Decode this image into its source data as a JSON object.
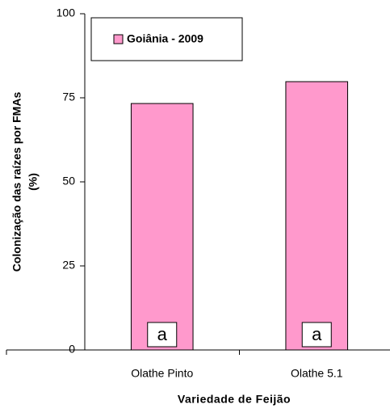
{
  "chart_data": {
    "type": "bar",
    "ylabel": [
      "Colonização das raízes por FMAs",
      "(%)"
    ],
    "xlabel": "Variedade de Feijão",
    "categories": [
      "Olathe Pinto",
      "Olathe 5.1"
    ],
    "series": [
      {
        "name": "Goiânia - 2009",
        "color": "#ff99cc",
        "values": [
          73.3,
          79.8
        ]
      }
    ],
    "annotations": [
      "a",
      "a"
    ],
    "ylim": [
      0,
      100
    ],
    "yticks": [
      0,
      25,
      50,
      75,
      100
    ]
  }
}
